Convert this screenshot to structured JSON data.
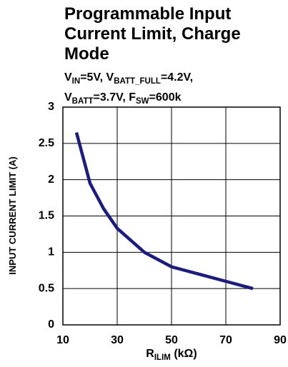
{
  "chart_data": {
    "type": "line",
    "title": [
      "Programmable Input",
      "Current Limit, Charge",
      "Mode"
    ],
    "subtitle": [
      [
        "V",
        "IN",
        "=5V, V",
        "BATT_FULL",
        "=4.2V,"
      ],
      [
        "V",
        "BATT",
        "=3.7V, F",
        "SW",
        "=600k"
      ]
    ],
    "xlabel": [
      "R",
      "ILIM",
      " (kΩ)"
    ],
    "ylabel": "INPUT CURRENT LIMIT (A)",
    "x": [
      15,
      20,
      25,
      30,
      40,
      50,
      60,
      70,
      80
    ],
    "series": [
      {
        "name": "Input Current Limit",
        "color": "#1c1c7c",
        "values": [
          2.65,
          1.95,
          1.6,
          1.33,
          1.0,
          0.8,
          0.7,
          0.6,
          0.5
        ]
      }
    ],
    "xlim": [
      10,
      90
    ],
    "xticks": [
      10,
      30,
      50,
      70,
      90
    ],
    "ylim": [
      0,
      3
    ],
    "yticks": [
      0,
      0.5,
      1,
      1.5,
      2,
      2.5,
      3
    ],
    "grid": true
  }
}
